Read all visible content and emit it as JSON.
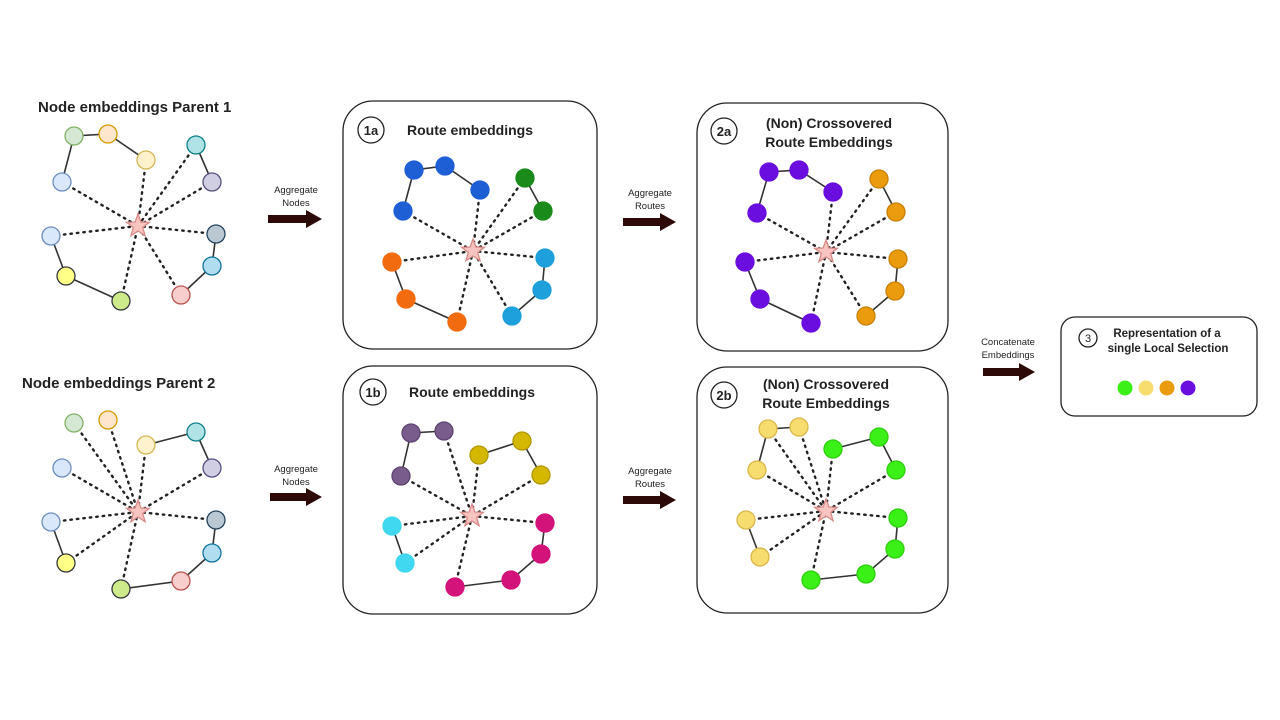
{
  "labels": {
    "parent1": "Node embeddings Parent 1",
    "parent2": "Node embeddings Parent 2",
    "badge_1a": "1a",
    "badge_1b": "1b",
    "route_1a": "Route embeddings",
    "route_1b": "Route embeddings",
    "badge_2a": "2a",
    "badge_2b": "2b",
    "cross_2a_line1": "(Non) Crossovered",
    "cross_2a_line2": "Route Embeddings",
    "cross_2b_line1": "(Non) Crossovered",
    "cross_2b_line2": "Route Embeddings",
    "badge_3": "3",
    "rep_line1": "Representation of a",
    "rep_line2": "single Local Selection"
  },
  "arrows": {
    "agg_nodes_top": [
      "Aggregate",
      "Nodes"
    ],
    "agg_nodes_bottom": [
      "Aggregate",
      "Nodes"
    ],
    "agg_routes_top": [
      "Aggregate",
      "Routes"
    ],
    "agg_routes_bottom": [
      "Aggregate",
      "Routes"
    ],
    "concat": [
      "Concatenate",
      "Embeddings"
    ]
  },
  "colors": {
    "star": "#f8c4c0",
    "arrow": "#2d0a08",
    "route_blue": "#1f5fd6",
    "route_green": "#1a8a1a",
    "route_orange": "#f26b0f",
    "route_cyan": "#1ea0dc",
    "route_purple_dark": "#7a5c8c",
    "route_yellow": "#d4b800",
    "route_cyan_light": "#3fd8f0",
    "route_magenta": "#d4137a",
    "selection_purple": "#6a0ee0",
    "selection_orange": "#eb9b0e",
    "selection_yellow": "#f7dc6f",
    "selection_green": "#3bf016"
  },
  "representation_nodes": [
    "#3bf016",
    "#f7dc6f",
    "#eb9b0e",
    "#6a0ee0"
  ]
}
